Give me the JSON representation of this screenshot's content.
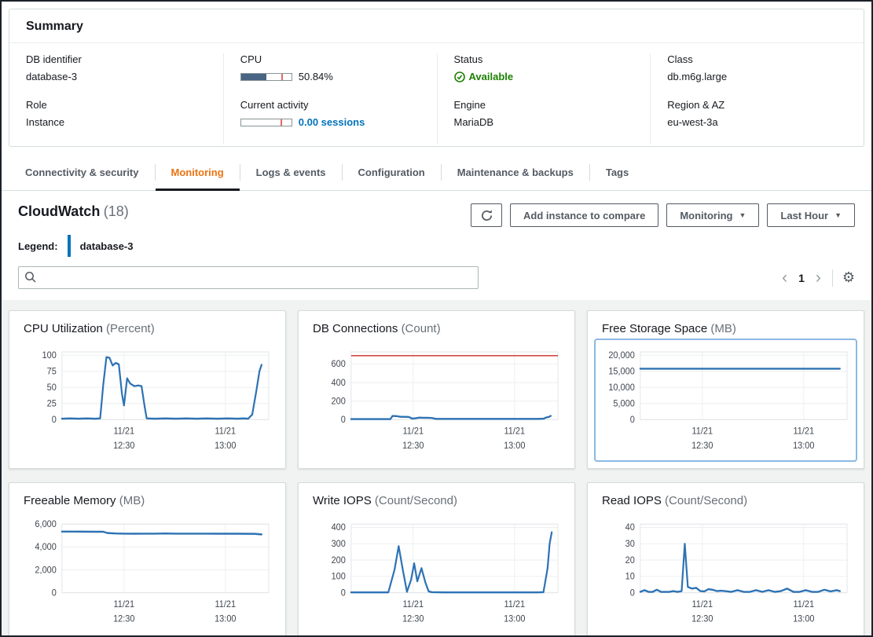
{
  "summary": {
    "title": "Summary",
    "db_identifier_label": "DB identifier",
    "db_identifier": "database-3",
    "role_label": "Role",
    "role": "Instance",
    "cpu_label": "CPU",
    "cpu_value": "50.84%",
    "cpu_percent": 50.84,
    "cpu_tick_percent": 80,
    "activity_label": "Current activity",
    "activity_value": "0.00 sessions",
    "activity_percent": 0,
    "activity_tick_percent": 78,
    "status_label": "Status",
    "status": "Available",
    "engine_label": "Engine",
    "engine": "MariaDB",
    "class_label": "Class",
    "class": "db.m6g.large",
    "region_label": "Region & AZ",
    "region": "eu-west-3a"
  },
  "tabs": {
    "items": [
      {
        "label": "Connectivity & security",
        "active": false
      },
      {
        "label": "Monitoring",
        "active": true
      },
      {
        "label": "Logs & events",
        "active": false
      },
      {
        "label": "Configuration",
        "active": false
      },
      {
        "label": "Maintenance & backups",
        "active": false
      },
      {
        "label": "Tags",
        "active": false
      }
    ]
  },
  "cloudwatch": {
    "title": "CloudWatch",
    "count": "(18)",
    "legend_label": "Legend:",
    "legend_value": "database-3",
    "add_button": "Add instance to compare",
    "monitoring_button": "Monitoring",
    "range_button": "Last Hour",
    "search_placeholder": "",
    "page_number": "1"
  },
  "colors": {
    "accent_orange": "#ec7211",
    "link_blue": "#0073bb",
    "status_green": "#1d8102",
    "chart_line": "#2d72b4",
    "chart_refline": "#d84a4a",
    "selected_border": "#8cb8e4"
  },
  "chart_data": [
    {
      "type": "line",
      "id": "cpu-utilization",
      "title": "CPU Utilization",
      "unit": "(Percent)",
      "ylim": [
        0,
        105
      ],
      "selected": false,
      "refline": null,
      "yticks": [
        {
          "v": 0,
          "l": "0"
        },
        {
          "v": 25,
          "l": "25"
        },
        {
          "v": 50,
          "l": "50"
        },
        {
          "v": 75,
          "l": "75"
        },
        {
          "v": 100,
          "l": "100"
        }
      ],
      "xticks": [
        {
          "pos": 0.3,
          "l1": "11/21",
          "l2": "12:30"
        },
        {
          "pos": 0.79,
          "l1": "11/21",
          "l2": "13:00"
        }
      ],
      "points": [
        [
          0,
          1.5
        ],
        [
          0.04,
          2
        ],
        [
          0.08,
          1.5
        ],
        [
          0.12,
          2
        ],
        [
          0.16,
          1.5
        ],
        [
          0.185,
          2
        ],
        [
          0.2,
          55
        ],
        [
          0.215,
          97
        ],
        [
          0.23,
          96
        ],
        [
          0.245,
          84
        ],
        [
          0.26,
          88
        ],
        [
          0.275,
          86
        ],
        [
          0.29,
          40
        ],
        [
          0.3,
          22
        ],
        [
          0.315,
          64
        ],
        [
          0.33,
          56
        ],
        [
          0.35,
          52
        ],
        [
          0.37,
          53
        ],
        [
          0.385,
          52
        ],
        [
          0.4,
          20
        ],
        [
          0.41,
          2
        ],
        [
          0.45,
          1.5
        ],
        [
          0.5,
          2
        ],
        [
          0.55,
          1.5
        ],
        [
          0.6,
          2
        ],
        [
          0.65,
          1.5
        ],
        [
          0.7,
          2
        ],
        [
          0.75,
          1.5
        ],
        [
          0.8,
          2
        ],
        [
          0.85,
          1.5
        ],
        [
          0.88,
          2
        ],
        [
          0.9,
          1.5
        ],
        [
          0.92,
          8
        ],
        [
          0.94,
          45
        ],
        [
          0.955,
          75
        ],
        [
          0.965,
          85
        ]
      ]
    },
    {
      "type": "line",
      "id": "db-connections",
      "title": "DB Connections",
      "unit": "(Count)",
      "ylim": [
        0,
        730
      ],
      "selected": false,
      "refline": 690,
      "yticks": [
        {
          "v": 0,
          "l": "0"
        },
        {
          "v": 200,
          "l": "200"
        },
        {
          "v": 400,
          "l": "400"
        },
        {
          "v": 600,
          "l": "600"
        }
      ],
      "xticks": [
        {
          "pos": 0.3,
          "l1": "11/21",
          "l2": "12:30"
        },
        {
          "pos": 0.79,
          "l1": "11/21",
          "l2": "13:00"
        }
      ],
      "points": [
        [
          0,
          6
        ],
        [
          0.05,
          6
        ],
        [
          0.1,
          6
        ],
        [
          0.15,
          6
        ],
        [
          0.19,
          6
        ],
        [
          0.2,
          40
        ],
        [
          0.22,
          38
        ],
        [
          0.24,
          30
        ],
        [
          0.26,
          30
        ],
        [
          0.28,
          28
        ],
        [
          0.295,
          12
        ],
        [
          0.31,
          15
        ],
        [
          0.33,
          22
        ],
        [
          0.35,
          20
        ],
        [
          0.37,
          20
        ],
        [
          0.39,
          18
        ],
        [
          0.41,
          8
        ],
        [
          0.45,
          8
        ],
        [
          0.5,
          8
        ],
        [
          0.55,
          8
        ],
        [
          0.6,
          8
        ],
        [
          0.65,
          8
        ],
        [
          0.7,
          8
        ],
        [
          0.75,
          8
        ],
        [
          0.8,
          8
        ],
        [
          0.85,
          8
        ],
        [
          0.9,
          8
        ],
        [
          0.93,
          10
        ],
        [
          0.945,
          25
        ],
        [
          0.955,
          28
        ],
        [
          0.965,
          40
        ]
      ]
    },
    {
      "type": "line",
      "id": "free-storage-space",
      "title": "Free Storage Space",
      "unit": "(MB)",
      "ylim": [
        0,
        21000
      ],
      "selected": true,
      "refline": null,
      "yticks": [
        {
          "v": 0,
          "l": "0"
        },
        {
          "v": 5000,
          "l": "5,000"
        },
        {
          "v": 10000,
          "l": "10,000"
        },
        {
          "v": 15000,
          "l": "15,000"
        },
        {
          "v": 20000,
          "l": "20,000"
        }
      ],
      "xticks": [
        {
          "pos": 0.3,
          "l1": "11/21",
          "l2": "12:30"
        },
        {
          "pos": 0.79,
          "l1": "11/21",
          "l2": "13:00"
        }
      ],
      "points": [
        [
          0,
          15800
        ],
        [
          0.25,
          15800
        ],
        [
          0.5,
          15800
        ],
        [
          0.75,
          15800
        ],
        [
          0.965,
          15800
        ]
      ]
    },
    {
      "type": "line",
      "id": "freeable-memory",
      "title": "Freeable Memory",
      "unit": "(MB)",
      "ylim": [
        0,
        6000
      ],
      "selected": false,
      "refline": null,
      "yticks": [
        {
          "v": 0,
          "l": "0"
        },
        {
          "v": 2000,
          "l": "2,000"
        },
        {
          "v": 4000,
          "l": "4,000"
        },
        {
          "v": 6000,
          "l": "6,000"
        }
      ],
      "xticks": [
        {
          "pos": 0.3,
          "l1": "11/21",
          "l2": "12:30"
        },
        {
          "pos": 0.79,
          "l1": "11/21",
          "l2": "13:00"
        }
      ],
      "points": [
        [
          0,
          5350
        ],
        [
          0.05,
          5350
        ],
        [
          0.1,
          5340
        ],
        [
          0.15,
          5330
        ],
        [
          0.2,
          5330
        ],
        [
          0.22,
          5220
        ],
        [
          0.26,
          5180
        ],
        [
          0.3,
          5170
        ],
        [
          0.35,
          5160
        ],
        [
          0.4,
          5170
        ],
        [
          0.45,
          5170
        ],
        [
          0.5,
          5180
        ],
        [
          0.55,
          5170
        ],
        [
          0.6,
          5170
        ],
        [
          0.65,
          5170
        ],
        [
          0.7,
          5170
        ],
        [
          0.75,
          5160
        ],
        [
          0.8,
          5160
        ],
        [
          0.85,
          5160
        ],
        [
          0.9,
          5150
        ],
        [
          0.93,
          5150
        ],
        [
          0.965,
          5100
        ]
      ]
    },
    {
      "type": "line",
      "id": "write-iops",
      "title": "Write IOPS",
      "unit": "(Count/Second)",
      "ylim": [
        0,
        420
      ],
      "selected": false,
      "refline": null,
      "yticks": [
        {
          "v": 0,
          "l": "0"
        },
        {
          "v": 100,
          "l": "100"
        },
        {
          "v": 200,
          "l": "200"
        },
        {
          "v": 300,
          "l": "300"
        },
        {
          "v": 400,
          "l": "400"
        }
      ],
      "xticks": [
        {
          "pos": 0.3,
          "l1": "11/21",
          "l2": "12:30"
        },
        {
          "pos": 0.79,
          "l1": "11/21",
          "l2": "13:00"
        }
      ],
      "points": [
        [
          0,
          2
        ],
        [
          0.05,
          2
        ],
        [
          0.1,
          2
        ],
        [
          0.15,
          2
        ],
        [
          0.18,
          2
        ],
        [
          0.21,
          140
        ],
        [
          0.23,
          285
        ],
        [
          0.25,
          140
        ],
        [
          0.27,
          5
        ],
        [
          0.29,
          80
        ],
        [
          0.305,
          180
        ],
        [
          0.32,
          70
        ],
        [
          0.34,
          150
        ],
        [
          0.36,
          60
        ],
        [
          0.375,
          8
        ],
        [
          0.39,
          3
        ],
        [
          0.45,
          2
        ],
        [
          0.5,
          2
        ],
        [
          0.55,
          2
        ],
        [
          0.6,
          2
        ],
        [
          0.65,
          2
        ],
        [
          0.7,
          2
        ],
        [
          0.75,
          2
        ],
        [
          0.8,
          2
        ],
        [
          0.85,
          2
        ],
        [
          0.9,
          2
        ],
        [
          0.93,
          3
        ],
        [
          0.95,
          150
        ],
        [
          0.96,
          300
        ],
        [
          0.97,
          370
        ]
      ]
    },
    {
      "type": "line",
      "id": "read-iops",
      "title": "Read IOPS",
      "unit": "(Count/Second)",
      "ylim": [
        0,
        42
      ],
      "selected": false,
      "refline": null,
      "yticks": [
        {
          "v": 0,
          "l": "0"
        },
        {
          "v": 10,
          "l": "10"
        },
        {
          "v": 20,
          "l": "20"
        },
        {
          "v": 30,
          "l": "30"
        },
        {
          "v": 40,
          "l": "40"
        }
      ],
      "xticks": [
        {
          "pos": 0.3,
          "l1": "11/21",
          "l2": "12:30"
        },
        {
          "pos": 0.79,
          "l1": "11/21",
          "l2": "13:00"
        }
      ],
      "points": [
        [
          0,
          0.5
        ],
        [
          0.02,
          1.5
        ],
        [
          0.04,
          0.5
        ],
        [
          0.06,
          0.5
        ],
        [
          0.08,
          1.8
        ],
        [
          0.1,
          0.5
        ],
        [
          0.12,
          0.5
        ],
        [
          0.14,
          0.5
        ],
        [
          0.16,
          1
        ],
        [
          0.18,
          0.5
        ],
        [
          0.2,
          1
        ],
        [
          0.215,
          30
        ],
        [
          0.23,
          3.5
        ],
        [
          0.25,
          2.5
        ],
        [
          0.27,
          3
        ],
        [
          0.29,
          1
        ],
        [
          0.31,
          0.8
        ],
        [
          0.33,
          2.2
        ],
        [
          0.35,
          1.8
        ],
        [
          0.37,
          1
        ],
        [
          0.39,
          1.2
        ],
        [
          0.41,
          1
        ],
        [
          0.44,
          0.5
        ],
        [
          0.47,
          1.5
        ],
        [
          0.5,
          0.5
        ],
        [
          0.53,
          0.5
        ],
        [
          0.56,
          1.5
        ],
        [
          0.59,
          0.5
        ],
        [
          0.62,
          1.5
        ],
        [
          0.65,
          0.5
        ],
        [
          0.68,
          1
        ],
        [
          0.71,
          2.5
        ],
        [
          0.74,
          0.5
        ],
        [
          0.77,
          0.5
        ],
        [
          0.8,
          1.5
        ],
        [
          0.83,
          0.5
        ],
        [
          0.86,
          0.5
        ],
        [
          0.89,
          1.8
        ],
        [
          0.92,
          0.8
        ],
        [
          0.95,
          1.5
        ],
        [
          0.965,
          1
        ]
      ]
    }
  ]
}
